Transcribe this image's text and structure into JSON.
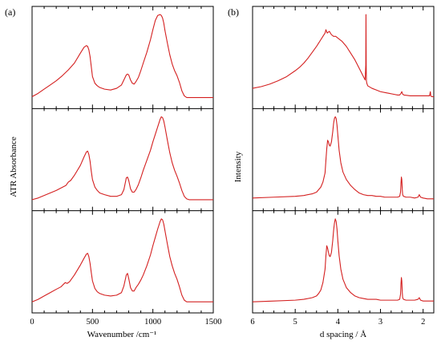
{
  "figure": {
    "panel_a_label": "(a)",
    "panel_b_label": "(b)"
  },
  "colors": {
    "trace": "#d42020",
    "axis": "#000000"
  },
  "chart_data": [
    {
      "type": "line",
      "panel": "(a)",
      "xlabel": "Wavenumber /cm⁻¹",
      "ylabel": "ATR Absorbance",
      "xlim": [
        0,
        1500
      ],
      "x_ticks": [
        0,
        500,
        1000,
        1500
      ],
      "x_minor_step": 100,
      "ylim": [
        0,
        1
      ],
      "y_ticks_shown": false,
      "stacked_subplots": 3,
      "grid": false,
      "legend": "none",
      "series": [
        {
          "x": [
            0,
            50,
            100,
            150,
            200,
            250,
            300,
            350,
            400,
            430,
            450,
            460,
            470,
            480,
            490,
            500,
            520,
            540,
            560,
            600,
            650,
            700,
            740,
            760,
            780,
            790,
            800,
            815,
            830,
            845,
            860,
            880,
            900,
            920,
            950,
            980,
            1000,
            1020,
            1040,
            1060,
            1070,
            1080,
            1090,
            1100,
            1120,
            1140,
            1160,
            1180,
            1200,
            1220,
            1240,
            1260,
            1280,
            1300,
            1350,
            1400,
            1450,
            1500
          ],
          "y": [
            0.02,
            0.06,
            0.11,
            0.16,
            0.21,
            0.27,
            0.34,
            0.42,
            0.54,
            0.61,
            0.63,
            0.62,
            0.58,
            0.5,
            0.38,
            0.26,
            0.18,
            0.15,
            0.13,
            0.11,
            0.1,
            0.12,
            0.16,
            0.22,
            0.28,
            0.29,
            0.28,
            0.22,
            0.18,
            0.17,
            0.2,
            0.25,
            0.33,
            0.42,
            0.55,
            0.7,
            0.82,
            0.93,
            0.99,
            1.0,
            0.99,
            0.96,
            0.9,
            0.81,
            0.66,
            0.52,
            0.41,
            0.33,
            0.27,
            0.19,
            0.09,
            0.03,
            0.01,
            0.01,
            0.01,
            0.01,
            0.01,
            0.01
          ]
        },
        {
          "x": [
            0,
            50,
            100,
            150,
            200,
            240,
            280,
            300,
            320,
            350,
            400,
            430,
            450,
            460,
            470,
            480,
            490,
            500,
            520,
            540,
            560,
            600,
            650,
            700,
            740,
            760,
            780,
            790,
            800,
            815,
            830,
            845,
            860,
            880,
            900,
            920,
            950,
            980,
            1000,
            1020,
            1040,
            1060,
            1070,
            1080,
            1090,
            1100,
            1120,
            1140,
            1160,
            1180,
            1200,
            1220,
            1240,
            1260,
            1280,
            1300,
            1350,
            1400,
            1450,
            1500
          ],
          "y": [
            0.01,
            0.03,
            0.06,
            0.09,
            0.12,
            0.15,
            0.18,
            0.22,
            0.24,
            0.3,
            0.42,
            0.52,
            0.58,
            0.59,
            0.55,
            0.47,
            0.35,
            0.25,
            0.16,
            0.12,
            0.09,
            0.07,
            0.05,
            0.05,
            0.07,
            0.13,
            0.27,
            0.28,
            0.24,
            0.14,
            0.1,
            0.1,
            0.13,
            0.19,
            0.27,
            0.36,
            0.48,
            0.6,
            0.7,
            0.79,
            0.88,
            0.97,
            1.0,
            0.99,
            0.95,
            0.88,
            0.72,
            0.57,
            0.45,
            0.36,
            0.29,
            0.21,
            0.12,
            0.05,
            0.02,
            0.01,
            0.01,
            0.01,
            0.01,
            0.01
          ]
        },
        {
          "x": [
            0,
            50,
            100,
            150,
            200,
            240,
            260,
            275,
            290,
            310,
            350,
            400,
            430,
            450,
            460,
            470,
            480,
            490,
            500,
            520,
            540,
            560,
            600,
            650,
            700,
            740,
            760,
            780,
            790,
            800,
            815,
            830,
            845,
            860,
            880,
            900,
            920,
            950,
            980,
            1000,
            1020,
            1040,
            1060,
            1070,
            1080,
            1090,
            1100,
            1120,
            1140,
            1160,
            1180,
            1200,
            1220,
            1240,
            1260,
            1280,
            1300,
            1350,
            1400,
            1450,
            1500
          ],
          "y": [
            0.01,
            0.04,
            0.08,
            0.12,
            0.16,
            0.19,
            0.22,
            0.24,
            0.23,
            0.25,
            0.33,
            0.45,
            0.53,
            0.58,
            0.59,
            0.55,
            0.47,
            0.36,
            0.26,
            0.17,
            0.13,
            0.11,
            0.09,
            0.08,
            0.09,
            0.12,
            0.2,
            0.33,
            0.35,
            0.29,
            0.18,
            0.14,
            0.14,
            0.18,
            0.22,
            0.27,
            0.33,
            0.44,
            0.57,
            0.68,
            0.78,
            0.88,
            0.97,
            1.0,
            0.99,
            0.94,
            0.86,
            0.7,
            0.55,
            0.44,
            0.35,
            0.28,
            0.19,
            0.09,
            0.03,
            0.01,
            0.01,
            0.01,
            0.01,
            0.01,
            0.01
          ]
        }
      ]
    },
    {
      "type": "line",
      "panel": "(b)",
      "xlabel": "d spacing / Å",
      "ylabel": "Intensity",
      "xlim": [
        6,
        1.75
      ],
      "x_ticks": [
        6,
        5,
        4,
        3,
        2
      ],
      "x_minor_step": 0.25,
      "ylim": [
        0,
        1
      ],
      "y_ticks_shown": false,
      "stacked_subplots": 3,
      "grid": false,
      "legend": "none",
      "series": [
        {
          "x": [
            6.0,
            5.8,
            5.6,
            5.4,
            5.2,
            5.0,
            4.9,
            4.8,
            4.7,
            4.6,
            4.5,
            4.45,
            4.4,
            4.35,
            4.3,
            4.28,
            4.25,
            4.2,
            4.15,
            4.1,
            4.05,
            4.0,
            3.95,
            3.9,
            3.8,
            3.7,
            3.6,
            3.5,
            3.45,
            3.4,
            3.36,
            3.345,
            3.34,
            3.335,
            3.33,
            3.32,
            3.3,
            3.2,
            3.1,
            3.0,
            2.9,
            2.8,
            2.7,
            2.6,
            2.55,
            2.52,
            2.5,
            2.48,
            2.45,
            2.3,
            2.2,
            2.1,
            2.0,
            1.9,
            1.85,
            1.83,
            1.82,
            1.8,
            1.75
          ],
          "y": [
            0.12,
            0.14,
            0.17,
            0.21,
            0.26,
            0.33,
            0.37,
            0.42,
            0.48,
            0.55,
            0.62,
            0.66,
            0.7,
            0.74,
            0.78,
            0.82,
            0.78,
            0.8,
            0.76,
            0.74,
            0.74,
            0.72,
            0.7,
            0.68,
            0.62,
            0.54,
            0.46,
            0.36,
            0.31,
            0.26,
            0.22,
            0.4,
            1.0,
            0.4,
            0.21,
            0.18,
            0.15,
            0.12,
            0.1,
            0.08,
            0.07,
            0.06,
            0.05,
            0.04,
            0.04,
            0.06,
            0.08,
            0.05,
            0.04,
            0.03,
            0.03,
            0.03,
            0.03,
            0.03,
            0.03,
            0.08,
            0.03,
            0.02,
            0.02
          ]
        },
        {
          "x": [
            6.0,
            5.5,
            5.0,
            4.8,
            4.6,
            4.5,
            4.45,
            4.4,
            4.35,
            4.3,
            4.28,
            4.26,
            4.24,
            4.22,
            4.2,
            4.18,
            4.15,
            4.12,
            4.1,
            4.08,
            4.06,
            4.04,
            4.02,
            4.0,
            3.97,
            3.93,
            3.88,
            3.8,
            3.7,
            3.6,
            3.5,
            3.4,
            3.3,
            3.2,
            3.1,
            3.0,
            2.9,
            2.8,
            2.7,
            2.6,
            2.55,
            2.53,
            2.52,
            2.51,
            2.5,
            2.49,
            2.48,
            2.46,
            2.4,
            2.3,
            2.2,
            2.12,
            2.09,
            2.06,
            2.0,
            1.9,
            1.8,
            1.75
          ],
          "y": [
            0.03,
            0.04,
            0.05,
            0.06,
            0.08,
            0.1,
            0.13,
            0.16,
            0.22,
            0.33,
            0.48,
            0.62,
            0.72,
            0.7,
            0.66,
            0.65,
            0.7,
            0.82,
            0.92,
            0.98,
            1.0,
            0.98,
            0.9,
            0.78,
            0.6,
            0.45,
            0.34,
            0.25,
            0.18,
            0.13,
            0.09,
            0.07,
            0.06,
            0.06,
            0.05,
            0.05,
            0.04,
            0.04,
            0.04,
            0.04,
            0.05,
            0.1,
            0.2,
            0.28,
            0.25,
            0.14,
            0.07,
            0.05,
            0.04,
            0.04,
            0.03,
            0.04,
            0.07,
            0.04,
            0.03,
            0.02,
            0.02,
            0.02
          ]
        },
        {
          "x": [
            6.0,
            5.5,
            5.0,
            4.8,
            4.6,
            4.5,
            4.45,
            4.4,
            4.35,
            4.3,
            4.28,
            4.26,
            4.24,
            4.22,
            4.2,
            4.18,
            4.15,
            4.12,
            4.1,
            4.08,
            4.06,
            4.04,
            4.02,
            4.0,
            3.97,
            3.93,
            3.88,
            3.8,
            3.7,
            3.6,
            3.5,
            3.4,
            3.3,
            3.2,
            3.1,
            3.0,
            2.9,
            2.8,
            2.7,
            2.6,
            2.55,
            2.53,
            2.52,
            2.51,
            2.5,
            2.49,
            2.48,
            2.46,
            2.4,
            2.3,
            2.2,
            2.12,
            2.09,
            2.06,
            2.0,
            1.9,
            1.8,
            1.75
          ],
          "y": [
            0.01,
            0.02,
            0.03,
            0.04,
            0.06,
            0.08,
            0.11,
            0.15,
            0.24,
            0.4,
            0.56,
            0.68,
            0.65,
            0.6,
            0.56,
            0.55,
            0.6,
            0.74,
            0.86,
            0.95,
            1.0,
            0.97,
            0.88,
            0.74,
            0.56,
            0.4,
            0.28,
            0.18,
            0.12,
            0.08,
            0.06,
            0.05,
            0.04,
            0.04,
            0.04,
            0.03,
            0.03,
            0.03,
            0.03,
            0.03,
            0.04,
            0.1,
            0.22,
            0.3,
            0.26,
            0.13,
            0.06,
            0.04,
            0.03,
            0.03,
            0.03,
            0.04,
            0.06,
            0.03,
            0.02,
            0.02,
            0.02,
            0.02
          ]
        }
      ]
    }
  ]
}
